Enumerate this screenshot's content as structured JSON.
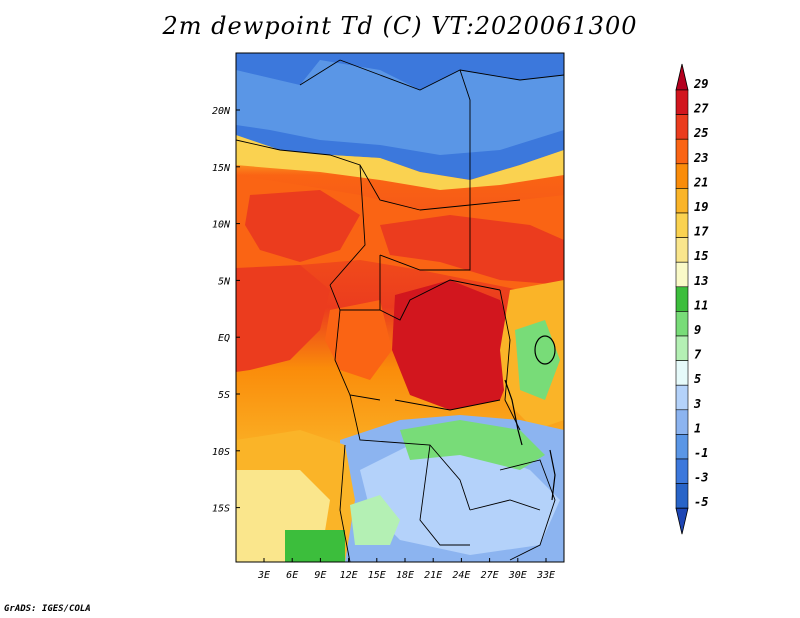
{
  "title": "2m dewpoint Td (C) VT:2020061300",
  "credit": "GrADS: IGES/COLA",
  "map": {
    "lat_labels": [
      "20N",
      "15N",
      "10N",
      "5N",
      "EQ",
      "5S",
      "10S",
      "15S"
    ],
    "lon_labels": [
      "3E",
      "6E",
      "9E",
      "12E",
      "15E",
      "18E",
      "21E",
      "24E",
      "27E",
      "30E",
      "33E"
    ],
    "region": "Central Africa"
  },
  "colorbar": {
    "labels": [
      "29",
      "27",
      "25",
      "23",
      "21",
      "19",
      "17",
      "15",
      "13",
      "11",
      "9",
      "7",
      "5",
      "3",
      "1",
      "-1",
      "-3",
      "-5"
    ],
    "colors": [
      "#b4001e",
      "#d2161e",
      "#eb3c1e",
      "#fa6414",
      "#fa8c0a",
      "#fab428",
      "#fad250",
      "#fae68c",
      "#fafac8",
      "#3cbe3c",
      "#78dc78",
      "#b4f0b4",
      "#e6fafa",
      "#b4d2fa",
      "#8cb4f0",
      "#5a96e6",
      "#3c78dc",
      "#2864c8",
      "#1e46b4"
    ]
  }
}
